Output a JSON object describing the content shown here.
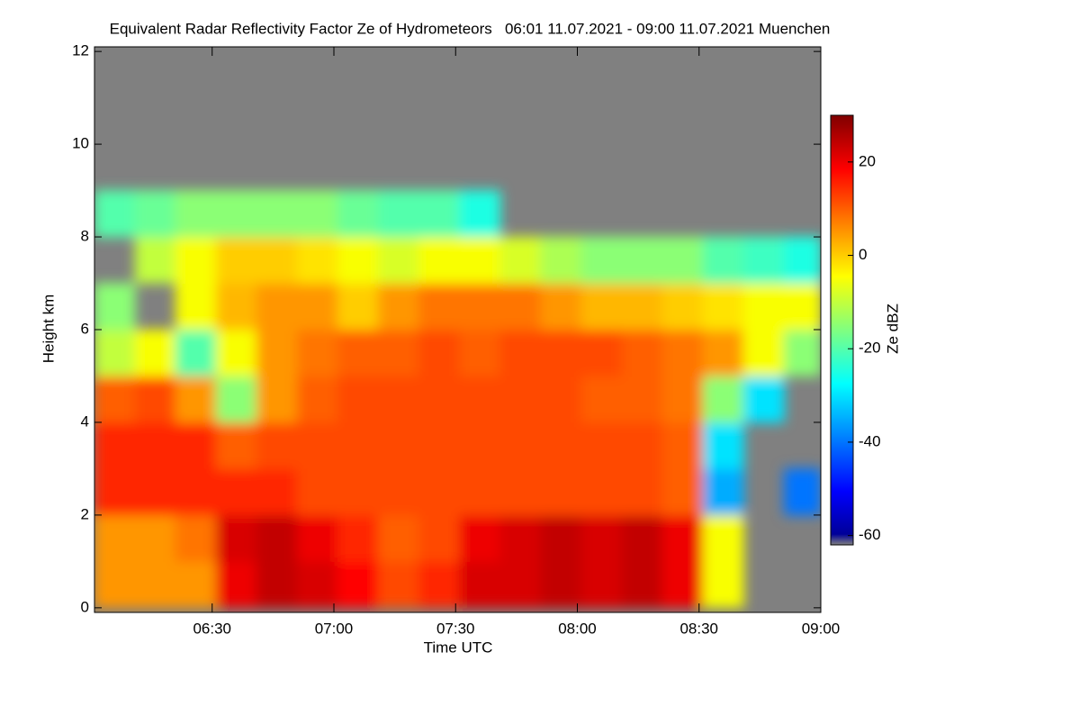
{
  "chart_data": {
    "type": "heatmap",
    "title": "Equivalent Radar Reflectivity Factor Ze of Hydrometeors   06:01 11.07.2021 - 09:00 11.07.2021 Muenchen",
    "x_label": "Time UTC",
    "y_label": "Height km",
    "colorbar_label": "Ze dBZ",
    "x": [
      "06:01",
      "06:11",
      "06:21",
      "06:31",
      "06:41",
      "06:51",
      "07:01",
      "07:11",
      "07:21",
      "07:31",
      "07:41",
      "07:51",
      "08:01",
      "08:11",
      "08:21",
      "08:31",
      "08:41",
      "08:51",
      "09:00"
    ],
    "y": [
      0,
      1,
      2,
      3,
      4,
      5,
      6,
      7,
      8,
      9,
      10,
      11,
      12
    ],
    "z": [
      [
        5,
        5,
        5,
        20,
        24,
        22,
        18,
        12,
        15,
        22,
        22,
        24,
        22,
        24,
        20,
        -5,
        null,
        null
      ],
      [
        5,
        5,
        8,
        22,
        24,
        20,
        15,
        10,
        12,
        20,
        22,
        24,
        22,
        24,
        20,
        -5,
        null,
        null
      ],
      [
        15,
        15,
        15,
        15,
        15,
        12,
        12,
        12,
        12,
        12,
        12,
        12,
        12,
        12,
        10,
        -35,
        null,
        -40
      ],
      [
        15,
        15,
        15,
        10,
        12,
        12,
        12,
        12,
        12,
        12,
        12,
        12,
        12,
        12,
        10,
        -30,
        null,
        null
      ],
      [
        10,
        12,
        5,
        -15,
        5,
        10,
        12,
        12,
        12,
        12,
        12,
        12,
        10,
        10,
        8,
        -15,
        -30,
        null
      ],
      [
        -10,
        -5,
        -20,
        -5,
        5,
        8,
        10,
        10,
        12,
        10,
        12,
        12,
        12,
        10,
        8,
        5,
        -5,
        -15
      ],
      [
        -15,
        null,
        -5,
        2,
        5,
        5,
        0,
        5,
        8,
        8,
        8,
        5,
        2,
        2,
        0,
        -2,
        -5,
        -5
      ],
      [
        null,
        -10,
        -5,
        0,
        0,
        -2,
        -5,
        -8,
        -5,
        -5,
        -8,
        -12,
        -15,
        -15,
        -15,
        -20,
        -22,
        -25
      ],
      [
        -20,
        -18,
        -15,
        -15,
        -15,
        -15,
        -18,
        -20,
        -20,
        -25,
        null,
        null,
        null,
        null,
        null,
        null,
        null,
        null
      ],
      [
        null,
        null,
        null,
        null,
        null,
        null,
        null,
        null,
        null,
        null,
        null,
        null,
        null,
        null,
        null,
        null,
        null,
        null
      ],
      [
        null,
        null,
        null,
        null,
        null,
        null,
        null,
        null,
        null,
        null,
        null,
        null,
        null,
        null,
        null,
        null,
        null,
        null
      ],
      [
        null,
        null,
        null,
        null,
        null,
        null,
        null,
        null,
        null,
        null,
        null,
        null,
        null,
        null,
        null,
        null,
        null,
        null
      ]
    ],
    "xlim": [
      "06:01",
      "09:00"
    ],
    "xticks": [
      "06:30",
      "07:00",
      "07:30",
      "08:00",
      "08:30",
      "09:00"
    ],
    "ylim": [
      -0.1,
      12.1
    ],
    "yticks": [
      0,
      2,
      4,
      6,
      8,
      10,
      12
    ],
    "clim": [
      -62,
      30
    ],
    "cticks": [
      -60,
      -40,
      -20,
      0,
      20
    ],
    "colormap": "jet",
    "nodata_color": "#808080"
  }
}
